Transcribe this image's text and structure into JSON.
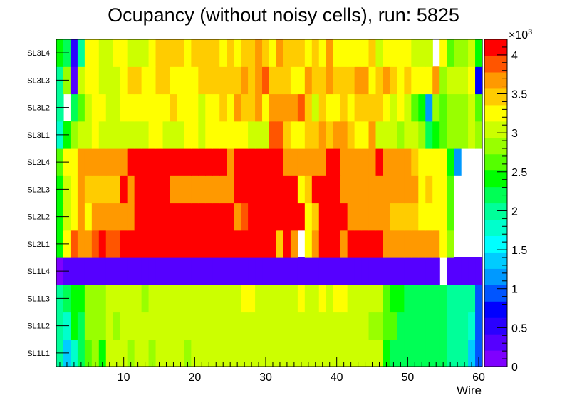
{
  "chart_data": {
    "type": "heatmap",
    "title": "Ocupancy (without noisy cells), run: 5825",
    "xlabel": "Wire",
    "ylabel": "",
    "x_range": [
      0.5,
      60.5
    ],
    "x_ticks": [
      10,
      20,
      30,
      40,
      50,
      60
    ],
    "y_categories": [
      "SL1L1",
      "SL1L2",
      "SL1L3",
      "SL1L4",
      "SL2L1",
      "SL2L2",
      "SL2L3",
      "SL2L4",
      "SL3L1",
      "SL3L2",
      "SL3L3",
      "SL3L4"
    ],
    "colorbar": {
      "range": [
        0,
        4200
      ],
      "ticks": [
        0,
        500,
        1000,
        1500,
        2000,
        2500,
        3000,
        3500,
        4000
      ],
      "tick_labels": [
        "0",
        "0.5",
        "1",
        "1.5",
        "2",
        "2.5",
        "3",
        "3.5",
        "4"
      ],
      "multiplier": "×10",
      "multiplier_exp": "3"
    },
    "colors": [
      "#7f00ff",
      "#5500ff",
      "#2a00ff",
      "#0000ff",
      "#0055ff",
      "#0099ff",
      "#00ccff",
      "#00ffff",
      "#00ffcc",
      "#00ff99",
      "#00ff55",
      "#00ff00",
      "#55ff00",
      "#99ff00",
      "#ccff00",
      "#ffff00",
      "#ffcc00",
      "#ff9900",
      "#ff5500",
      "#ff0000"
    ],
    "values": [
      [
        2000,
        1400,
        1800,
        2100,
        2600,
        2900,
        2500,
        3000,
        3000,
        3000,
        2900,
        3000,
        3000,
        2900,
        3000,
        3000,
        3000,
        3000,
        2900,
        3000,
        3000,
        3100,
        3100,
        3000,
        3100,
        3100,
        3100,
        3000,
        3100,
        3100,
        3100,
        3100,
        3100,
        3000,
        3100,
        3100,
        3100,
        3100,
        3100,
        3100,
        3100,
        3000,
        3100,
        3100,
        3000,
        3000,
        2500,
        2300,
        2300,
        2300,
        2300,
        2200,
        2300,
        2300,
        2300,
        2000,
        2000,
        2000,
        1400,
        1000
      ],
      [
        2000,
        1700,
        2400,
        2300,
        2800,
        2900,
        2800,
        3000,
        2900,
        3000,
        3000,
        3000,
        3000,
        3000,
        3000,
        3000,
        3000,
        3000,
        3000,
        3100,
        3000,
        3000,
        3000,
        3000,
        3000,
        3100,
        3100,
        3000,
        3000,
        3000,
        3100,
        3100,
        3000,
        3000,
        3000,
        3100,
        3100,
        3000,
        3000,
        3100,
        3000,
        3000,
        3000,
        3000,
        2900,
        2900,
        2700,
        2700,
        2300,
        2300,
        2300,
        2300,
        2300,
        2300,
        2300,
        2000,
        1900,
        2000,
        1700,
        1000
      ],
      [
        2000,
        2300,
        2400,
        2400,
        2800,
        2900,
        2900,
        3000,
        3000,
        3000,
        3000,
        3000,
        2900,
        3000,
        3000,
        3000,
        3000,
        3000,
        3000,
        3100,
        3100,
        3000,
        3100,
        3100,
        3100,
        3100,
        3200,
        3200,
        3100,
        3100,
        3100,
        3100,
        3100,
        3100,
        3200,
        3100,
        3100,
        3200,
        3100,
        3200,
        3200,
        3100,
        3100,
        3100,
        3100,
        3100,
        2600,
        2400,
        2400,
        2300,
        2300,
        2300,
        2300,
        2300,
        2300,
        2000,
        1900,
        2000,
        1900,
        1000
      ],
      [
        0,
        300,
        300,
        300,
        300,
        300,
        300,
        300,
        300,
        300,
        300,
        300,
        300,
        300,
        300,
        300,
        300,
        300,
        300,
        300,
        300,
        300,
        300,
        300,
        300,
        300,
        300,
        300,
        300,
        300,
        300,
        300,
        300,
        300,
        300,
        300,
        300,
        300,
        300,
        300,
        300,
        300,
        300,
        300,
        300,
        300,
        300,
        300,
        300,
        300,
        300,
        300,
        300,
        300,
        null,
        300,
        300,
        300,
        300,
        300
      ],
      [
        2500,
        3200,
        3800,
        3700,
        3700,
        3800,
        4000,
        3800,
        3800,
        4000,
        4000,
        4000,
        4000,
        4000,
        4000,
        4000,
        4000,
        4000,
        4000,
        4000,
        4000,
        4000,
        4000,
        4000,
        4000,
        4000,
        4100,
        4200,
        4000,
        4000,
        4000,
        3500,
        4000,
        3600,
        null,
        3300,
        3600,
        4000,
        4000,
        4000,
        3700,
        4000,
        4000,
        4000,
        4000,
        4000,
        3700,
        3600,
        3700,
        3700,
        3600,
        3700,
        3600,
        3600,
        3300,
        2800,
        null,
        null,
        null,
        null
      ],
      [
        2500,
        3100,
        3300,
        3700,
        3300,
        3600,
        3600,
        3600,
        3600,
        3600,
        3600,
        4000,
        4000,
        4000,
        4000,
        4000,
        4000,
        4000,
        4000,
        4000,
        4000,
        4000,
        4000,
        4000,
        4000,
        3600,
        3900,
        4000,
        4000,
        4000,
        4000,
        4000,
        4000,
        4000,
        4000,
        3300,
        3400,
        4000,
        4000,
        4000,
        4000,
        3700,
        3600,
        3600,
        3600,
        3600,
        3600,
        3400,
        3400,
        3400,
        3400,
        3300,
        3300,
        3200,
        3300,
        2700,
        null,
        null,
        null,
        null
      ],
      [
        2500,
        3100,
        3300,
        3700,
        3400,
        3500,
        3500,
        3500,
        3500,
        4000,
        3600,
        4000,
        4000,
        4000,
        4000,
        4000,
        3600,
        3600,
        3600,
        3600,
        3600,
        3600,
        3600,
        3600,
        3700,
        4000,
        4000,
        4000,
        4000,
        4000,
        4000,
        4000,
        4000,
        4000,
        3300,
        3400,
        4000,
        4000,
        4000,
        4000,
        3600,
        3600,
        3600,
        3600,
        3600,
        3600,
        3600,
        3600,
        3600,
        3600,
        3600,
        3300,
        3400,
        3300,
        3300,
        2700,
        null,
        null,
        null,
        null
      ],
      [
        2600,
        3200,
        3300,
        3700,
        3600,
        3600,
        3600,
        3600,
        3600,
        3600,
        4000,
        4000,
        4000,
        4000,
        4000,
        4000,
        4000,
        4000,
        4000,
        4000,
        4000,
        4000,
        4000,
        4000,
        3700,
        4000,
        4100,
        4200,
        4000,
        4000,
        4000,
        4000,
        3600,
        3600,
        3600,
        3700,
        3700,
        3600,
        4000,
        4000,
        3700,
        3700,
        3700,
        3700,
        3700,
        4000,
        3700,
        3600,
        3600,
        3700,
        3500,
        3300,
        3300,
        3300,
        3200,
        2400,
        1200,
        null,
        null,
        null
      ],
      [
        1700,
        2500,
        2800,
        3000,
        3000,
        3300,
        3000,
        3000,
        3000,
        3000,
        3000,
        3000,
        3100,
        3300,
        3300,
        3100,
        3100,
        3100,
        3300,
        3200,
        3100,
        3200,
        3300,
        3300,
        3300,
        3300,
        3300,
        3100,
        3100,
        3100,
        3900,
        3900,
        3500,
        3300,
        3300,
        3500,
        3500,
        3600,
        3500,
        3700,
        3700,
        3500,
        3300,
        3300,
        3600,
        3100,
        3100,
        3000,
        2900,
        3000,
        3100,
        2900,
        2300,
        2500,
        2600,
        2800,
        2800,
        2800,
        3000,
        2800
      ],
      [
        2000,
        null,
        2200,
        2700,
        3000,
        3200,
        3200,
        3000,
        3000,
        3200,
        3300,
        3200,
        3200,
        3300,
        3200,
        3200,
        3500,
        3300,
        3300,
        3300,
        3100,
        3200,
        3300,
        3400,
        3300,
        3600,
        3400,
        3500,
        3600,
        3300,
        3600,
        3600,
        3600,
        3600,
        3800,
        3500,
        3100,
        3500,
        3300,
        3300,
        3500,
        3300,
        3500,
        3500,
        3500,
        3500,
        3200,
        3100,
        3300,
        3100,
        2700,
        2500,
        1200,
        2900,
        2600,
        2900,
        2900,
        2900,
        3000,
        2600
      ],
      [
        2000,
        2800,
        300,
        3100,
        3200,
        3300,
        3000,
        3000,
        3000,
        3300,
        3400,
        3400,
        3300,
        3300,
        3400,
        3400,
        3300,
        3300,
        3300,
        3300,
        3500,
        3500,
        3500,
        3400,
        3400,
        3500,
        3600,
        3500,
        3600,
        3800,
        3500,
        3500,
        3500,
        3300,
        3300,
        3600,
        3400,
        3500,
        3700,
        3500,
        3500,
        3500,
        3700,
        3600,
        3300,
        3500,
        3700,
        3400,
        3300,
        3400,
        3300,
        3300,
        3300,
        3700,
        2900,
        3000,
        3100,
        3100,
        3200,
        800
      ],
      [
        2500,
        2200,
        600,
        2000,
        3200,
        3200,
        3000,
        3000,
        3200,
        3200,
        3000,
        3000,
        3000,
        3200,
        3500,
        3500,
        3500,
        3500,
        3300,
        3500,
        3500,
        3500,
        3500,
        3300,
        3500,
        3300,
        3500,
        3500,
        3700,
        3500,
        3300,
        3700,
        3500,
        3500,
        3500,
        3300,
        3400,
        3300,
        3600,
        3300,
        3300,
        3300,
        3300,
        3300,
        3500,
        3100,
        3300,
        3300,
        3300,
        3300,
        3100,
        3100,
        3100,
        null,
        3200,
        2600,
        2900,
        2900,
        3000,
        2400
      ]
    ]
  }
}
